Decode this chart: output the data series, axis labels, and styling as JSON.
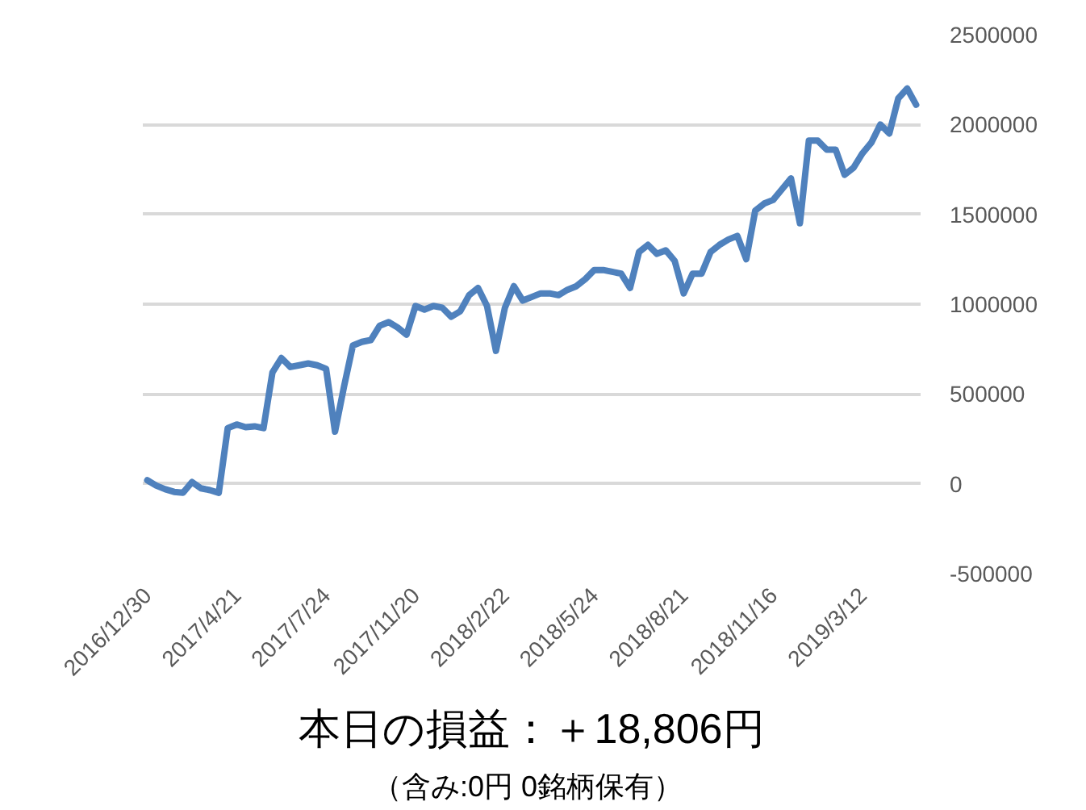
{
  "chart_data": {
    "type": "line",
    "title": "本日の損益：＋18,806円",
    "subtitle": "（含み:0円  0銘柄保有）",
    "categories": [
      "2016/12/30",
      null,
      null,
      null,
      null,
      null,
      null,
      null,
      null,
      null,
      "2017/4/21",
      null,
      null,
      null,
      null,
      null,
      null,
      null,
      null,
      null,
      "2017/7/24",
      null,
      null,
      null,
      null,
      null,
      null,
      null,
      null,
      null,
      "2017/11/20",
      null,
      null,
      null,
      null,
      null,
      null,
      null,
      null,
      null,
      "2018/2/22",
      null,
      null,
      null,
      null,
      null,
      null,
      null,
      null,
      null,
      "2018/5/24",
      null,
      null,
      null,
      null,
      null,
      null,
      null,
      null,
      null,
      "2018/8/21",
      null,
      null,
      null,
      null,
      null,
      null,
      null,
      null,
      null,
      "2018/11/16",
      null,
      null,
      null,
      null,
      null,
      null,
      null,
      null,
      null,
      "2019/3/12",
      null,
      null,
      null,
      null,
      null,
      null
    ],
    "series": [
      {
        "color": "#4f81bd",
        "values": [
          20000,
          -10000,
          -30000,
          -45000,
          -50000,
          10000,
          -25000,
          -35000,
          -50000,
          310000,
          330000,
          315000,
          320000,
          310000,
          620000,
          700000,
          650000,
          660000,
          670000,
          660000,
          640000,
          290000,
          540000,
          770000,
          790000,
          800000,
          880000,
          900000,
          870000,
          830000,
          990000,
          970000,
          990000,
          980000,
          930000,
          960000,
          1050000,
          1090000,
          990000,
          740000,
          980000,
          1100000,
          1020000,
          1040000,
          1060000,
          1060000,
          1050000,
          1080000,
          1100000,
          1140000,
          1190000,
          1190000,
          1180000,
          1170000,
          1090000,
          1290000,
          1330000,
          1280000,
          1300000,
          1240000,
          1060000,
          1170000,
          1170000,
          1290000,
          1330000,
          1360000,
          1380000,
          1250000,
          1520000,
          1560000,
          1580000,
          1640000,
          1700000,
          1450000,
          1910000,
          1910000,
          1860000,
          1860000,
          1720000,
          1760000,
          1840000,
          1900000,
          2000000,
          1950000,
          2145000,
          2200000,
          2110000
        ]
      }
    ],
    "ylim": [
      -500000,
      2500000
    ],
    "yticks": [
      -500000,
      0,
      500000,
      1000000,
      1500000,
      2000000,
      2500000
    ],
    "grid": "y",
    "marker": "none",
    "line_style": "solid"
  }
}
